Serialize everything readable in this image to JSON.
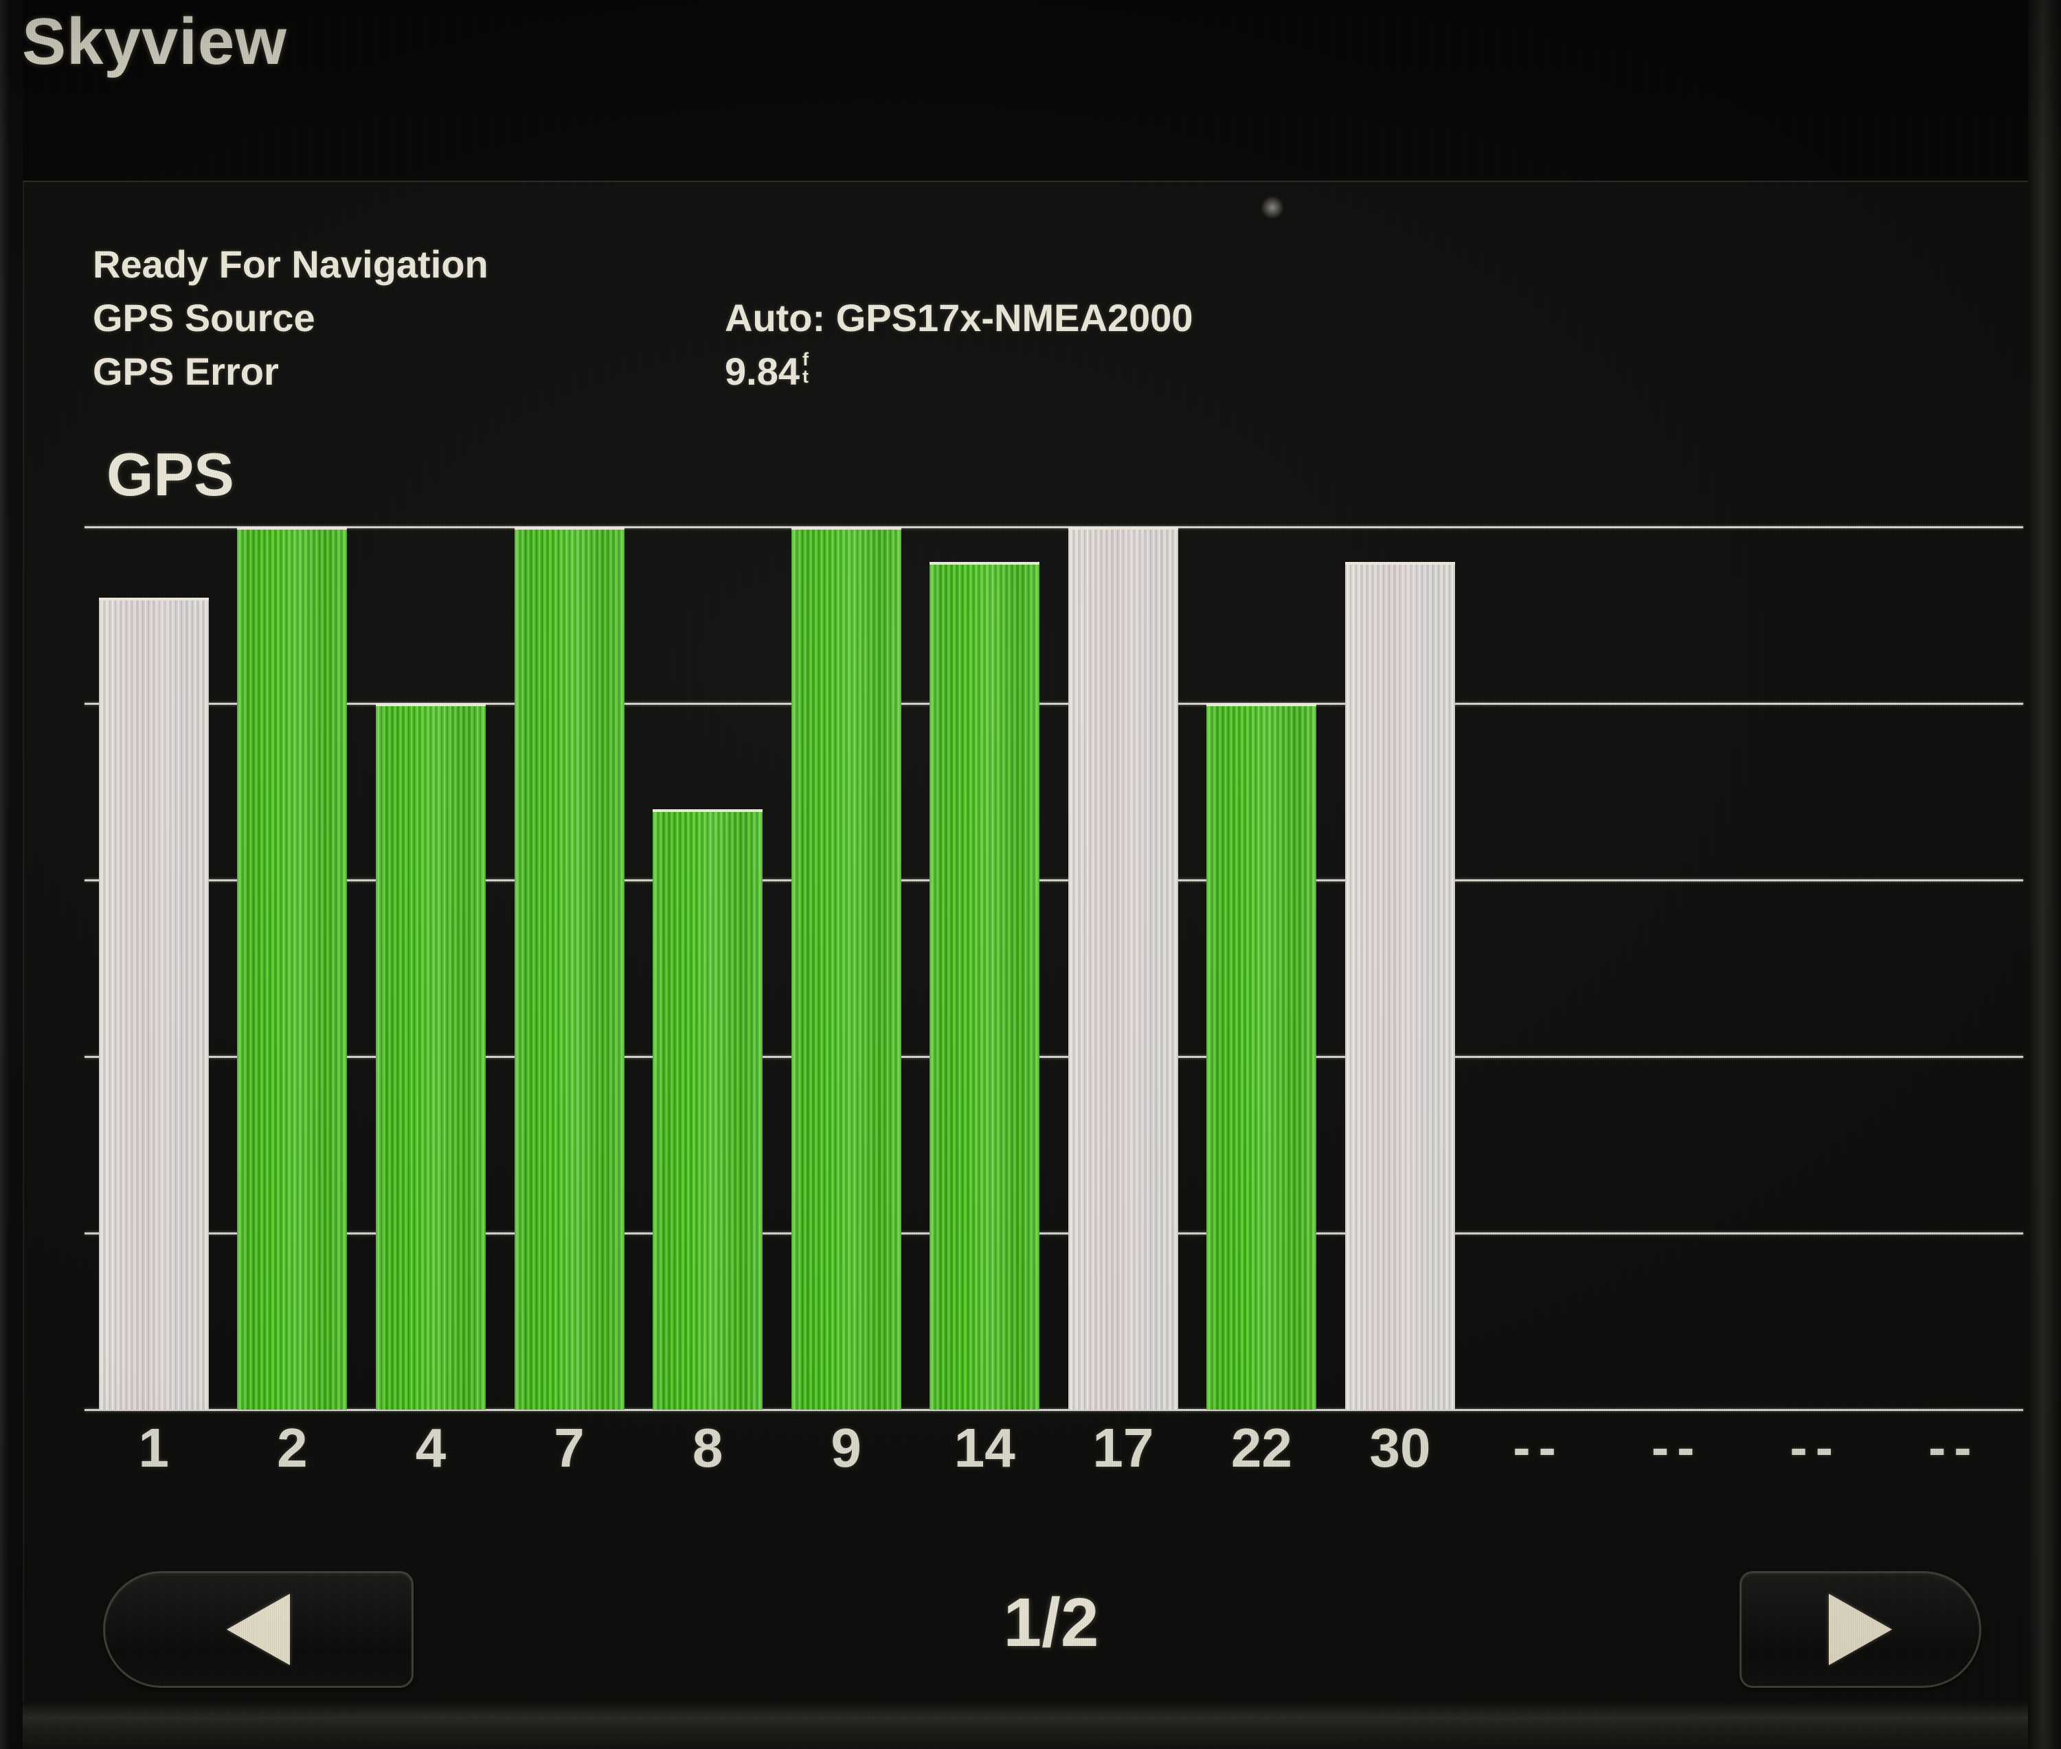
{
  "header": {
    "title": "Skyview"
  },
  "status": {
    "ready_text": "Ready For Navigation",
    "source_label": "GPS Source",
    "source_value": "Auto: GPS17x-NMEA2000",
    "error_label": "GPS Error",
    "error_value": "9.84",
    "error_unit": [
      "f",
      "t"
    ]
  },
  "chart_data": {
    "type": "bar",
    "title": "GPS",
    "categories": [
      "1",
      "2",
      "4",
      "7",
      "8",
      "9",
      "14",
      "17",
      "22",
      "30",
      "--",
      "--",
      "--",
      "--"
    ],
    "values": [
      92,
      100,
      80,
      100,
      68,
      100,
      96,
      100,
      80,
      96,
      null,
      null,
      null,
      null
    ],
    "bar_styles": [
      "not_in_use",
      "in_use",
      "in_use",
      "in_use",
      "in_use",
      "in_use",
      "in_use",
      "not_in_use",
      "in_use",
      "not_in_use",
      null,
      null,
      null,
      null
    ],
    "xlabel": "",
    "ylabel": "",
    "ylim": [
      0,
      100
    ],
    "gridlines": 6,
    "grid": true,
    "legend": false,
    "colors": {
      "bar_in_use": "#4abc22",
      "bar_not_in_use": "#d9d5ce",
      "gridline": "#d4d1c9",
      "label_text": "#d9d6c9"
    }
  },
  "footer": {
    "page_indicator": "1/2",
    "prev_icon": "left-triangle",
    "next_icon": "right-triangle"
  }
}
